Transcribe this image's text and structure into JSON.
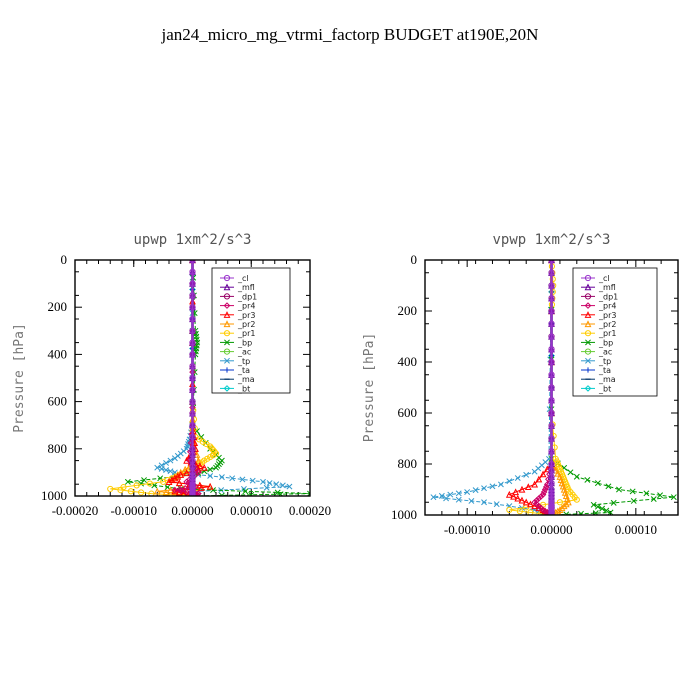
{
  "figure_title": "jan24_micro_mg_vtrmi_factorp  BUDGET at190E,20N",
  "chart_data": [
    {
      "type": "line",
      "title": "upwp   1xm^2/s^3",
      "ylabel": "Pressure [hPa]",
      "xlim": [
        -0.0002,
        0.0002
      ],
      "ylim": [
        1000,
        0
      ],
      "xticks": [
        -0.0002,
        -0.0001,
        0,
        0.0001,
        0.0002
      ],
      "xtick_labels": [
        "-0.00020",
        "-0.00010",
        "0.00000",
        "0.00010",
        "0.00020"
      ],
      "yticks": [
        0,
        200,
        400,
        600,
        800,
        1000
      ],
      "ytick_labels": [
        "0",
        "200",
        "400",
        "600",
        "800",
        "1000"
      ],
      "legend_position": "top-right",
      "series": [
        {
          "name": "_cl",
          "color": "#9933cc",
          "marker": "circle",
          "pressure": [
            0,
            200,
            400,
            600,
            800,
            900,
            950,
            970,
            990,
            1000
          ],
          "values": [
            0,
            0,
            0,
            0,
            0,
            0,
            0,
            0,
            0,
            0
          ]
        },
        {
          "name": "_mfl",
          "color": "#660099",
          "marker": "triangle",
          "pressure": [
            0,
            200,
            400,
            600,
            800,
            900,
            950,
            970,
            990,
            1000
          ],
          "values": [
            0,
            0,
            0,
            0,
            0,
            0,
            0,
            0,
            0,
            0
          ]
        },
        {
          "name": "_dp1",
          "color": "#990066",
          "marker": "circle",
          "pressure": [
            0,
            200,
            400,
            600,
            800,
            900,
            950,
            970,
            990,
            1000
          ],
          "values": [
            0,
            0,
            0,
            0,
            0,
            0,
            0,
            0,
            0,
            0
          ]
        },
        {
          "name": "_pr4",
          "color": "#cc0066",
          "marker": "diamond",
          "pressure": [
            0,
            400,
            700,
            850,
            900,
            940,
            960,
            975,
            990,
            1000
          ],
          "values": [
            0,
            0,
            0,
            -5e-06,
            1e-05,
            -1e-05,
            5e-06,
            -3e-05,
            1e-05,
            0
          ]
        },
        {
          "name": "_pr3",
          "color": "#ff0000",
          "marker": "triangle",
          "pressure": [
            0,
            700,
            800,
            850,
            880,
            910,
            940,
            960,
            980,
            1000
          ],
          "values": [
            0,
            0,
            5e-06,
            -1e-05,
            2e-05,
            -2e-05,
            -4e-05,
            3e-05,
            -3e-05,
            0
          ]
        },
        {
          "name": "_pr2",
          "color": "#ff9900",
          "marker": "triangle",
          "pressure": [
            0,
            600,
            750,
            850,
            900,
            940,
            960,
            980,
            1000
          ],
          "values": [
            0,
            0,
            0,
            1e-05,
            -2e-05,
            -4e-05,
            3e-05,
            -6e-05,
            0
          ]
        },
        {
          "name": "_pr1",
          "color": "#ffcc00",
          "marker": "circle",
          "pressure": [
            0,
            600,
            750,
            790,
            820,
            850,
            880,
            910,
            940,
            970,
            990,
            1000
          ],
          "values": [
            0,
            0,
            5e-06,
            3e-05,
            4e-05,
            2e-05,
            5e-06,
            -2e-05,
            -5e-05,
            -0.00014,
            -7e-05,
            0
          ]
        },
        {
          "name": "_bp",
          "color": "#009900",
          "marker": "x",
          "pressure": [
            0,
            300,
            350,
            400,
            700,
            800,
            850,
            880,
            910,
            940,
            970,
            990,
            1000
          ],
          "values": [
            0,
            5e-06,
            8e-06,
            5e-06,
            0,
            3e-05,
            5e-05,
            4e-05,
            0,
            -0.00011,
            -2e-05,
            0.0002,
            0
          ]
        },
        {
          "name": "_ac",
          "color": "#66cc33",
          "marker": "circle",
          "pressure": [
            0,
            400,
            800,
            900,
            960,
            1000
          ],
          "values": [
            0,
            0,
            0,
            0,
            0,
            0
          ]
        },
        {
          "name": "_tp",
          "color": "#3399cc",
          "marker": "x",
          "pressure": [
            0,
            300,
            700,
            760,
            800,
            840,
            880,
            900,
            920,
            940,
            960,
            980,
            1000
          ],
          "values": [
            0,
            0,
            0,
            -5e-06,
            -1e-05,
            -3e-05,
            -6e-05,
            -3e-05,
            5e-05,
            0.00012,
            0.000165,
            1e-05,
            0
          ]
        },
        {
          "name": "_ta",
          "color": "#0033cc",
          "marker": "plus",
          "pressure": [
            0,
            500,
            900,
            950,
            1000
          ],
          "values": [
            0,
            0,
            0,
            0,
            0
          ]
        },
        {
          "name": "_ma",
          "color": "#003366",
          "marker": "dash",
          "pressure": [
            0,
            500,
            900,
            950,
            1000
          ],
          "values": [
            0,
            0,
            0,
            0,
            0
          ]
        },
        {
          "name": "_bt",
          "color": "#00cccc",
          "marker": "diamond",
          "pressure": [
            0,
            500,
            900,
            950,
            1000
          ],
          "values": [
            0,
            0,
            0,
            0,
            0
          ]
        }
      ]
    },
    {
      "type": "line",
      "title": "vpwp   1xm^2/s^3",
      "ylabel": "Pressure [hPa]",
      "xlim": [
        -0.00015,
        0.00015
      ],
      "ylim": [
        1000,
        0
      ],
      "xticks": [
        -0.0001,
        0,
        0.0001
      ],
      "xtick_labels": [
        "-0.00010",
        "0.00000",
        "0.00010"
      ],
      "yticks": [
        0,
        200,
        400,
        600,
        800,
        1000
      ],
      "ytick_labels": [
        "0",
        "200",
        "400",
        "600",
        "800",
        "1000"
      ],
      "legend_position": "top-right",
      "series": [
        {
          "name": "_cl",
          "color": "#9933cc",
          "marker": "circle",
          "pressure": [
            0,
            200,
            400,
            600,
            800,
            900,
            950,
            970,
            990,
            1000
          ],
          "values": [
            0,
            0,
            0,
            0,
            0,
            0,
            0,
            0,
            0,
            0
          ]
        },
        {
          "name": "_mfl",
          "color": "#660099",
          "marker": "triangle",
          "pressure": [
            0,
            200,
            400,
            600,
            800,
            900,
            950,
            970,
            990,
            1000
          ],
          "values": [
            0,
            0,
            0,
            0,
            0,
            0,
            0,
            0,
            0,
            0
          ]
        },
        {
          "name": "_dp1",
          "color": "#990066",
          "marker": "circle",
          "pressure": [
            0,
            200,
            400,
            600,
            800,
            900,
            950,
            970,
            990,
            1000
          ],
          "values": [
            0,
            0,
            0,
            0,
            0,
            0,
            0,
            0,
            0,
            0
          ]
        },
        {
          "name": "_pr4",
          "color": "#cc0066",
          "marker": "diamond",
          "pressure": [
            0,
            800,
            880,
            920,
            950,
            980,
            1000
          ],
          "values": [
            0,
            0,
            -5e-06,
            -1e-05,
            -2e-05,
            -1e-05,
            0
          ]
        },
        {
          "name": "_pr3",
          "color": "#ff0000",
          "marker": "triangle",
          "pressure": [
            0,
            800,
            880,
            920,
            950,
            980,
            1000
          ],
          "values": [
            0,
            0,
            -2e-05,
            -5e-05,
            -3e-05,
            -1e-05,
            0
          ]
        },
        {
          "name": "_pr2",
          "color": "#ff9900",
          "marker": "triangle",
          "pressure": [
            0,
            800,
            850,
            900,
            950,
            980,
            1000
          ],
          "values": [
            0,
            0,
            1e-05,
            1.5e-05,
            2e-05,
            1e-05,
            0
          ]
        },
        {
          "name": "_pr1",
          "color": "#ffcc00",
          "marker": "circle",
          "pressure": [
            0,
            100,
            200,
            600,
            780,
            820,
            860,
            900,
            940,
            980,
            1000
          ],
          "values": [
            0,
            2e-06,
            0,
            0,
            5e-06,
            1e-05,
            1.5e-05,
            2e-05,
            3e-05,
            -5e-05,
            0
          ]
        },
        {
          "name": "_bp",
          "color": "#009900",
          "marker": "x",
          "pressure": [
            0,
            780,
            850,
            900,
            930,
            960,
            990,
            1000
          ],
          "values": [
            0,
            0,
            3e-05,
            8e-05,
            0.000145,
            5e-05,
            7e-05,
            0
          ]
        },
        {
          "name": "_ac",
          "color": "#66cc33",
          "marker": "circle",
          "pressure": [
            0,
            400,
            800,
            900,
            960,
            1000
          ],
          "values": [
            0,
            0,
            0,
            0,
            0,
            0
          ]
        },
        {
          "name": "_tp",
          "color": "#3399cc",
          "marker": "x",
          "pressure": [
            0,
            780,
            830,
            880,
            910,
            930,
            950,
            980,
            1000
          ],
          "values": [
            0,
            -3e-06,
            -2e-05,
            -6e-05,
            -0.0001,
            -0.00014,
            -8e-05,
            -2e-05,
            0
          ]
        },
        {
          "name": "_ta",
          "color": "#0033cc",
          "marker": "plus",
          "pressure": [
            0,
            500,
            900,
            950,
            1000
          ],
          "values": [
            0,
            0,
            0,
            0,
            0
          ]
        },
        {
          "name": "_ma",
          "color": "#003366",
          "marker": "dash",
          "pressure": [
            0,
            500,
            900,
            950,
            1000
          ],
          "values": [
            0,
            0,
            0,
            0,
            0
          ]
        },
        {
          "name": "_bt",
          "color": "#00cccc",
          "marker": "diamond",
          "pressure": [
            0,
            500,
            900,
            950,
            1000
          ],
          "values": [
            0,
            0,
            0,
            0,
            0
          ]
        }
      ]
    }
  ]
}
